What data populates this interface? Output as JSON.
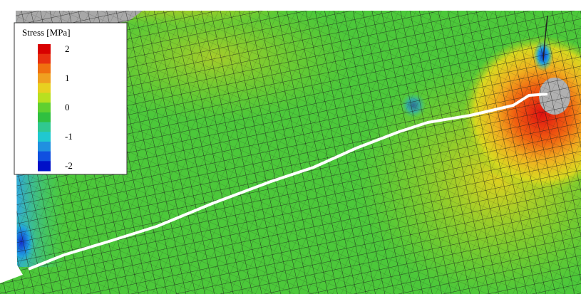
{
  "legend": {
    "title": "Stress [MPa]",
    "labels": [
      "2",
      "1",
      "0",
      "-1",
      "-2"
    ]
  }
}
